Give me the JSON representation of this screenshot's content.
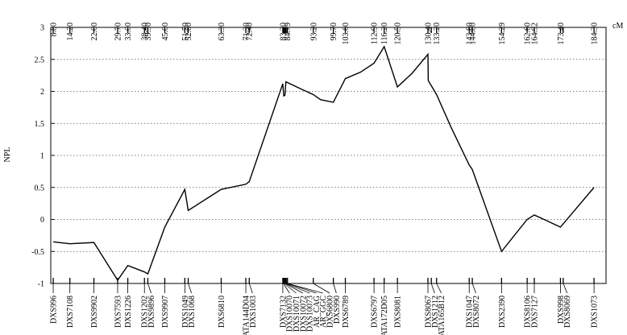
{
  "chart_data": {
    "type": "line",
    "y_label": "NPL",
    "x_unit_label": "cM",
    "xlim": [
      8,
      188.2
    ],
    "ylim": [
      -1,
      3
    ],
    "yticks": [
      -1,
      -0.5,
      0,
      0.5,
      1,
      1.5,
      2,
      2.5,
      3
    ],
    "grid": true,
    "xticks": [
      {
        "value": 8.8,
        "label": "8.80"
      },
      {
        "value": 14.2,
        "label": "14.20"
      },
      {
        "value": 22,
        "label": "22.00"
      },
      {
        "value": 29.7,
        "label": "29.70"
      },
      {
        "value": 33,
        "label": "33.00"
      },
      {
        "value": 38.4,
        "label": "38.40"
      },
      {
        "value": 39.5,
        "label": "39.50"
      },
      {
        "value": 45,
        "label": "45.00"
      },
      {
        "value": 51.5,
        "label": "51.50"
      },
      {
        "value": 52.6,
        "label": "52.60"
      },
      {
        "value": 63.3,
        "label": "63.30"
      },
      {
        "value": 71.3,
        "label": "71.30"
      },
      {
        "value": 72.4,
        "label": "72.40"
      },
      {
        "value": 83.3,
        "label": "83.30"
      },
      84.79,
      {
        "value": 93.2,
        "label": "93.20"
      },
      {
        "value": 99.7,
        "label": "99.70"
      },
      {
        "value": 103.6,
        "label": "103.60"
      },
      {
        "value": 112.9,
        "label": "112.90"
      },
      {
        "value": 116.2,
        "label": "116.20"
      },
      {
        "value": 120.5,
        "label": "120.50"
      },
      {
        "value": 130.4,
        "label": "130.40"
      },
      {
        "value": 133.2,
        "label": "133.20"
      },
      {
        "value": 143.8,
        "label": "143.80"
      },
      {
        "value": 144.8,
        "label": "144.80"
      },
      154.29,
      {
        "value": 162.6,
        "label": "162.60"
      },
      164.92,
      {
        "value": 173.4,
        "label": "173.40"
      },
      {
        "value": 184.3,
        "label": "184.30"
      }
    ],
    "markers": [
      {
        "name": "DXS996",
        "cM": 8.8
      },
      {
        "name": "DXS7108",
        "cM": 14.2
      },
      {
        "name": "DXS9902",
        "cM": 22
      },
      {
        "name": "DXS7593",
        "cM": 29.7
      },
      {
        "name": "DXS1226",
        "cM": 33
      },
      {
        "name": "DXS1202",
        "cM": 38.4
      },
      {
        "name": "DXS9896",
        "cM": 39.5
      },
      {
        "name": "DXS9907",
        "cM": 45
      },
      {
        "name": "DXS1049",
        "cM": 51.5
      },
      {
        "name": "DXS1068",
        "cM": 52.6
      },
      {
        "name": "DXS6810",
        "cM": 63.3
      },
      {
        "name": "GATA144D04",
        "cM": 71.3
      },
      {
        "name": "DXS1003",
        "cM": 72.4
      },
      {
        "name": "DXS7132",
        "cM": 83.3
      },
      {
        "name": "DXS10070",
        "cM": 83.5
      },
      {
        "name": "DXS10071",
        "cM": 83.8
      },
      {
        "name": "DXS10072",
        "cM": 84.1
      },
      {
        "name": "DXS10073",
        "cM": 84.4
      },
      {
        "name": "AR_CAG",
        "cM": 84.79
      },
      {
        "name": "AR_GGC",
        "cM": 84.79
      },
      {
        "name": "DXS6800",
        "cM": 93.2
      },
      {
        "name": "DXS990",
        "cM": 99.7
      },
      {
        "name": "DXS6789",
        "cM": 103.6
      },
      {
        "name": "DXS6797",
        "cM": 112.9
      },
      {
        "name": "GATA172D05",
        "cM": 116.2
      },
      {
        "name": "DXS8081",
        "cM": 120.5
      },
      {
        "name": "DXS8067",
        "cM": 130.4
      },
      {
        "name": "DXS1212",
        "cM": 131.5
      },
      {
        "name": "GATA165B12",
        "cM": 133.2
      },
      {
        "name": "DXS1047",
        "cM": 143.8
      },
      {
        "name": "DXS8072",
        "cM": 144.8
      },
      {
        "name": "DXS2390",
        "cM": 154.29
      },
      {
        "name": "DXS8106",
        "cM": 162.6
      },
      {
        "name": "DXS7127",
        "cM": 164.92
      },
      {
        "name": "DXS998",
        "cM": 173.4
      },
      {
        "name": "DXS8069",
        "cM": 174.3
      },
      {
        "name": "DXS1073",
        "cM": 184.3
      }
    ],
    "series": [
      {
        "name": "NPL",
        "color": "#000000",
        "x": [
          8.8,
          14.2,
          22,
          29.7,
          33,
          38.4,
          39.5,
          45,
          51.5,
          52.6,
          63.3,
          71.3,
          72.4,
          83.3,
          83.6,
          84,
          84.3,
          90,
          93.2,
          95.6,
          99.7,
          103.6,
          108.5,
          112.9,
          116.2,
          120.5,
          125.2,
          130.4,
          130.5,
          133.2,
          138,
          143.8,
          144.8,
          154.29,
          162.6,
          164.92,
          168.5,
          173.4,
          184.3
        ],
        "values": [
          -0.35,
          -0.38,
          -0.36,
          -0.95,
          -0.72,
          -0.82,
          -0.85,
          -0.12,
          0.47,
          0.14,
          0.47,
          0.55,
          0.59,
          2.12,
          1.93,
          1.94,
          2.15,
          2.02,
          1.95,
          1.87,
          1.83,
          2.2,
          2.3,
          2.44,
          2.7,
          2.07,
          2.28,
          2.58,
          2.17,
          1.95,
          1.43,
          0.85,
          0.78,
          -0.5,
          0.0,
          0.07,
          -0.01,
          -0.12,
          0.5
        ]
      }
    ]
  }
}
